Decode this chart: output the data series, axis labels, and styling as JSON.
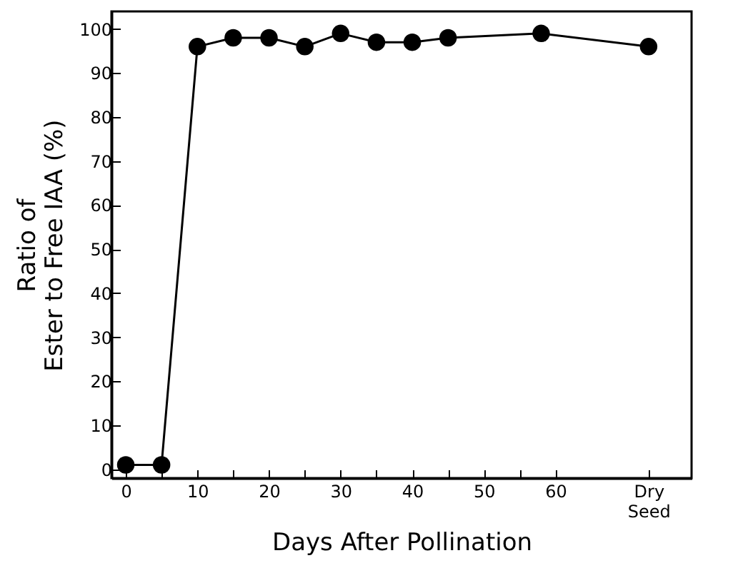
{
  "chart_data": {
    "type": "line",
    "xlabel": "Days After Pollination",
    "ylabel": "Ratio of\nEster to Free IAA (%)",
    "x": [
      0,
      5,
      10,
      15,
      20,
      25,
      30,
      35,
      40,
      45,
      58,
      73
    ],
    "series": [
      {
        "color": "#000000",
        "values": [
          1,
          1,
          96,
          98,
          98,
          96,
          99,
          97,
          97,
          98,
          99,
          96
        ]
      }
    ],
    "xlim": [
      -2,
      79
    ],
    "xticks": [
      0,
      {
        "value": 5,
        "label": null
      },
      10,
      {
        "value": 15,
        "label": null
      },
      20,
      {
        "value": 25,
        "label": null
      },
      30,
      {
        "value": 35,
        "label": null
      },
      40,
      {
        "value": 45,
        "label": null
      },
      50,
      {
        "value": 55,
        "label": null
      },
      60,
      {
        "value": 73,
        "label": "Dry Seed"
      }
    ],
    "ylim": [
      -2,
      104
    ],
    "yticks": [
      0,
      10,
      20,
      30,
      40,
      50,
      60,
      70,
      80,
      90,
      100
    ],
    "marker": "circle",
    "line_style": "solid",
    "grid": false,
    "legend": false
  }
}
